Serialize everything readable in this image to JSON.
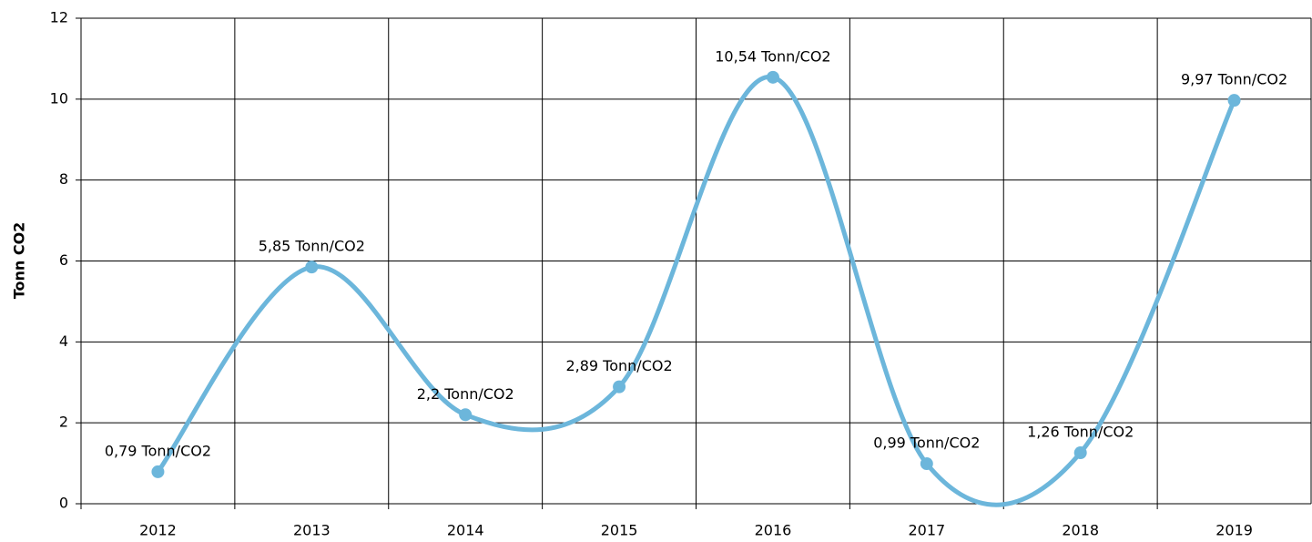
{
  "chart_data": {
    "type": "line",
    "y_label": "Tonn CO2",
    "categories": [
      "2012",
      "2013",
      "2014",
      "2015",
      "2016",
      "2017",
      "2018",
      "2019"
    ],
    "series": [
      {
        "color": "#6cb6db",
        "values": [
          0.79,
          5.85,
          2.2,
          2.89,
          10.54,
          0.99,
          1.26,
          9.97
        ],
        "value_labels": [
          "0,79 Tonn/CO2",
          "5,85 Tonn/CO2",
          "2,2 Tonn/CO2",
          "2,89 Tonn/CO2",
          "10,54 Tonn/CO2",
          "0,99 Tonn/CO2",
          "1,26 Tonn/CO2",
          "9,97 Tonn/CO2"
        ]
      }
    ],
    "ylim": [
      0,
      12
    ],
    "yticks": [
      0,
      2,
      4,
      6,
      8,
      10,
      12
    ],
    "grid": true,
    "smooth": true
  }
}
